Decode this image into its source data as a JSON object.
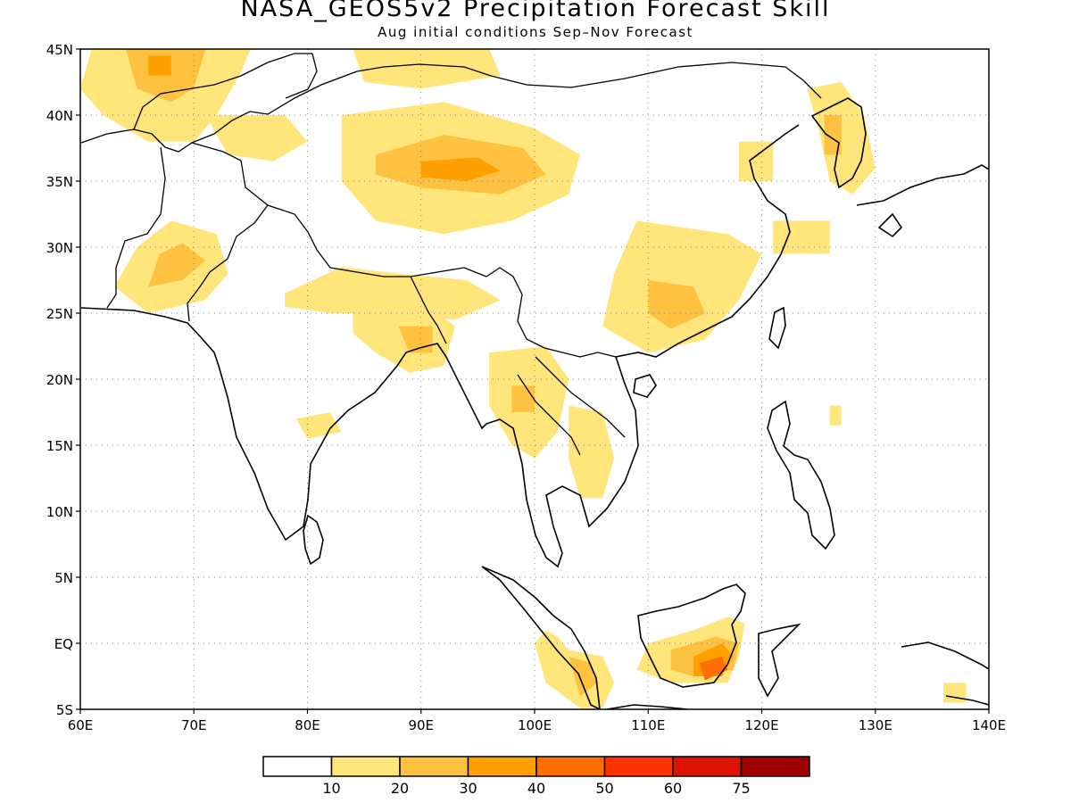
{
  "title": "NASA_GEOS5v2 Precipitation Forecast Skill",
  "subtitle": "Aug initial conditions  Sep–Nov Forecast",
  "map": {
    "lon_range": [
      60,
      140
    ],
    "lat_range": [
      -5,
      45
    ],
    "gridlines": "dotted",
    "lon_ticks": [
      {
        "value": 60,
        "label": "60E"
      },
      {
        "value": 70,
        "label": "70E"
      },
      {
        "value": 80,
        "label": "80E"
      },
      {
        "value": 90,
        "label": "90E"
      },
      {
        "value": 100,
        "label": "100E"
      },
      {
        "value": 110,
        "label": "110E"
      },
      {
        "value": 120,
        "label": "120E"
      },
      {
        "value": 130,
        "label": "130E"
      },
      {
        "value": 140,
        "label": "140E"
      }
    ],
    "lat_ticks": [
      {
        "value": 45,
        "label": "45N"
      },
      {
        "value": 40,
        "label": "40N"
      },
      {
        "value": 35,
        "label": "35N"
      },
      {
        "value": 30,
        "label": "30N"
      },
      {
        "value": 25,
        "label": "25N"
      },
      {
        "value": 20,
        "label": "20N"
      },
      {
        "value": 15,
        "label": "15N"
      },
      {
        "value": 10,
        "label": "10N"
      },
      {
        "value": 5,
        "label": "5N"
      },
      {
        "value": 0,
        "label": "EQ"
      },
      {
        "value": -5,
        "label": "5S"
      }
    ],
    "skill_regions": [
      {
        "level": 1,
        "points": [
          [
            61,
            45
          ],
          [
            75,
            45
          ],
          [
            74,
            43
          ],
          [
            72,
            40
          ],
          [
            70,
            38
          ],
          [
            66,
            38
          ],
          [
            62,
            40
          ],
          [
            60,
            42
          ]
        ]
      },
      {
        "level": 2,
        "points": [
          [
            64,
            45
          ],
          [
            71,
            45
          ],
          [
            70,
            42
          ],
          [
            68,
            41
          ],
          [
            65,
            42
          ]
        ]
      },
      {
        "level": 3,
        "points": [
          [
            66,
            44.5
          ],
          [
            68,
            44.5
          ],
          [
            68,
            43
          ],
          [
            66,
            43
          ]
        ]
      },
      {
        "level": 1,
        "points": [
          [
            71,
            40
          ],
          [
            78,
            40
          ],
          [
            80,
            38
          ],
          [
            77,
            36.5
          ],
          [
            73,
            37
          ]
        ]
      },
      {
        "level": 1,
        "points": [
          [
            84,
            45
          ],
          [
            96,
            45
          ],
          [
            97,
            43
          ],
          [
            90,
            42
          ],
          [
            85,
            42.5
          ]
        ]
      },
      {
        "level": 1,
        "points": [
          [
            83,
            40
          ],
          [
            92,
            41
          ],
          [
            100,
            39
          ],
          [
            104,
            37
          ],
          [
            103,
            34
          ],
          [
            98,
            32
          ],
          [
            92,
            31
          ],
          [
            86,
            32
          ],
          [
            83,
            35
          ]
        ]
      },
      {
        "level": 2,
        "points": [
          [
            86,
            37
          ],
          [
            92,
            38.5
          ],
          [
            99,
            37.5
          ],
          [
            101,
            35.5
          ],
          [
            97,
            34
          ],
          [
            90,
            34.5
          ],
          [
            86,
            35.5
          ]
        ]
      },
      {
        "level": 3,
        "points": [
          [
            90,
            36.5
          ],
          [
            95,
            36.8
          ],
          [
            97,
            35.8
          ],
          [
            94,
            35
          ],
          [
            90,
            35.3
          ]
        ]
      },
      {
        "level": 1,
        "points": [
          [
            66,
            25
          ],
          [
            71,
            26
          ],
          [
            73,
            28
          ],
          [
            72,
            31
          ],
          [
            68,
            32
          ],
          [
            65,
            30
          ],
          [
            63,
            27
          ]
        ]
      },
      {
        "level": 2,
        "points": [
          [
            66,
            27
          ],
          [
            69,
            27.5
          ],
          [
            71,
            29
          ],
          [
            69,
            30.3
          ],
          [
            67,
            29.5
          ]
        ]
      },
      {
        "level": 1,
        "points": [
          [
            78,
            26.5
          ],
          [
            83,
            28.5
          ],
          [
            88,
            28
          ],
          [
            94,
            27.5
          ],
          [
            97,
            26
          ],
          [
            93,
            24.5
          ],
          [
            87,
            25
          ],
          [
            82,
            25
          ],
          [
            78,
            25.5
          ]
        ]
      },
      {
        "level": 1,
        "points": [
          [
            84,
            25
          ],
          [
            90,
            26
          ],
          [
            93,
            24
          ],
          [
            92,
            21
          ],
          [
            89,
            20.5
          ],
          [
            86,
            22
          ],
          [
            84,
            23.5
          ]
        ]
      },
      {
        "level": 2,
        "points": [
          [
            88,
            24
          ],
          [
            91,
            24
          ],
          [
            91,
            22
          ],
          [
            89,
            22
          ]
        ]
      },
      {
        "level": 1,
        "points": [
          [
            109,
            32
          ],
          [
            117,
            31
          ],
          [
            120,
            29.5
          ],
          [
            118,
            26
          ],
          [
            115,
            23
          ],
          [
            110,
            22
          ],
          [
            106,
            24
          ],
          [
            107,
            28
          ]
        ]
      },
      {
        "level": 2,
        "points": [
          [
            110,
            27.5
          ],
          [
            114,
            27
          ],
          [
            115,
            25
          ],
          [
            112,
            23.8
          ],
          [
            110,
            25
          ]
        ]
      },
      {
        "level": 1,
        "points": [
          [
            118,
            38
          ],
          [
            121,
            38
          ],
          [
            121,
            35
          ],
          [
            118,
            35
          ]
        ]
      },
      {
        "level": 1,
        "points": [
          [
            121,
            32
          ],
          [
            126,
            32
          ],
          [
            126,
            29.5
          ],
          [
            121,
            29.5
          ]
        ]
      },
      {
        "level": 1,
        "points": [
          [
            124,
            42
          ],
          [
            127,
            42.5
          ],
          [
            129,
            40
          ],
          [
            130,
            36
          ],
          [
            128,
            34
          ],
          [
            126,
            35
          ],
          [
            125,
            39
          ]
        ]
      },
      {
        "level": 2,
        "points": [
          [
            125.5,
            40
          ],
          [
            127,
            40
          ],
          [
            127,
            37
          ],
          [
            125.5,
            37
          ]
        ]
      },
      {
        "level": 1,
        "points": [
          [
            96,
            22
          ],
          [
            101,
            22.5
          ],
          [
            103,
            20
          ],
          [
            102,
            16
          ],
          [
            100,
            14
          ],
          [
            98,
            15
          ],
          [
            96,
            18
          ]
        ]
      },
      {
        "level": 2,
        "points": [
          [
            98,
            19.5
          ],
          [
            100,
            19.5
          ],
          [
            100,
            17.5
          ],
          [
            98,
            17.5
          ]
        ]
      },
      {
        "level": 1,
        "points": [
          [
            103,
            18
          ],
          [
            106,
            17.5
          ],
          [
            107,
            14
          ],
          [
            106,
            11
          ],
          [
            104,
            11
          ],
          [
            103,
            14
          ]
        ]
      },
      {
        "level": 1,
        "points": [
          [
            79,
            17
          ],
          [
            82,
            17.5
          ],
          [
            83,
            16
          ],
          [
            80,
            15.5
          ]
        ]
      },
      {
        "level": 1,
        "points": [
          [
            103,
            -0.5
          ],
          [
            106,
            -1
          ],
          [
            107,
            -3
          ],
          [
            106,
            -4.9
          ],
          [
            104,
            -4.9
          ],
          [
            101,
            -3
          ],
          [
            100,
            0
          ],
          [
            101,
            1
          ],
          [
            102,
            0.5
          ]
        ]
      },
      {
        "level": 2,
        "points": [
          [
            103,
            -1
          ],
          [
            105,
            -1.5
          ],
          [
            105.5,
            -3
          ],
          [
            104,
            -4
          ]
        ]
      },
      {
        "level": 1,
        "points": [
          [
            110,
            0
          ],
          [
            114,
            1
          ],
          [
            117,
            2
          ],
          [
            118.5,
            1.5
          ],
          [
            118,
            -1
          ],
          [
            117,
            -3
          ],
          [
            112,
            -3
          ],
          [
            109,
            -2
          ]
        ]
      },
      {
        "level": 2,
        "points": [
          [
            112,
            -0.5
          ],
          [
            116,
            0.5
          ],
          [
            118,
            0
          ],
          [
            117.5,
            -2
          ],
          [
            114,
            -2.5
          ],
          [
            112,
            -2
          ]
        ]
      },
      {
        "level": 3,
        "points": [
          [
            114,
            -1
          ],
          [
            116.5,
            0
          ],
          [
            117.5,
            -1
          ],
          [
            116.5,
            -2.5
          ],
          [
            114,
            -2.5
          ]
        ]
      },
      {
        "level": 4,
        "points": [
          [
            114.5,
            -1.5
          ],
          [
            116.5,
            -1
          ],
          [
            117,
            -2
          ],
          [
            115,
            -2.8
          ]
        ]
      },
      {
        "level": 1,
        "points": [
          [
            126,
            18
          ],
          [
            127,
            18
          ],
          [
            127,
            16.5
          ],
          [
            126,
            16.5
          ]
        ]
      },
      {
        "level": 1,
        "points": [
          [
            136,
            -3
          ],
          [
            138,
            -3
          ],
          [
            138,
            -4.5
          ],
          [
            136,
            -4.5
          ]
        ]
      }
    ]
  },
  "colorbar": {
    "colors": [
      "#ffffff",
      "#ffe57a",
      "#ffc240",
      "#ffa000",
      "#ff6e00",
      "#ff3300",
      "#dc1400",
      "#a00000"
    ],
    "labels": [
      "10",
      "20",
      "30",
      "40",
      "50",
      "60",
      "75"
    ]
  }
}
